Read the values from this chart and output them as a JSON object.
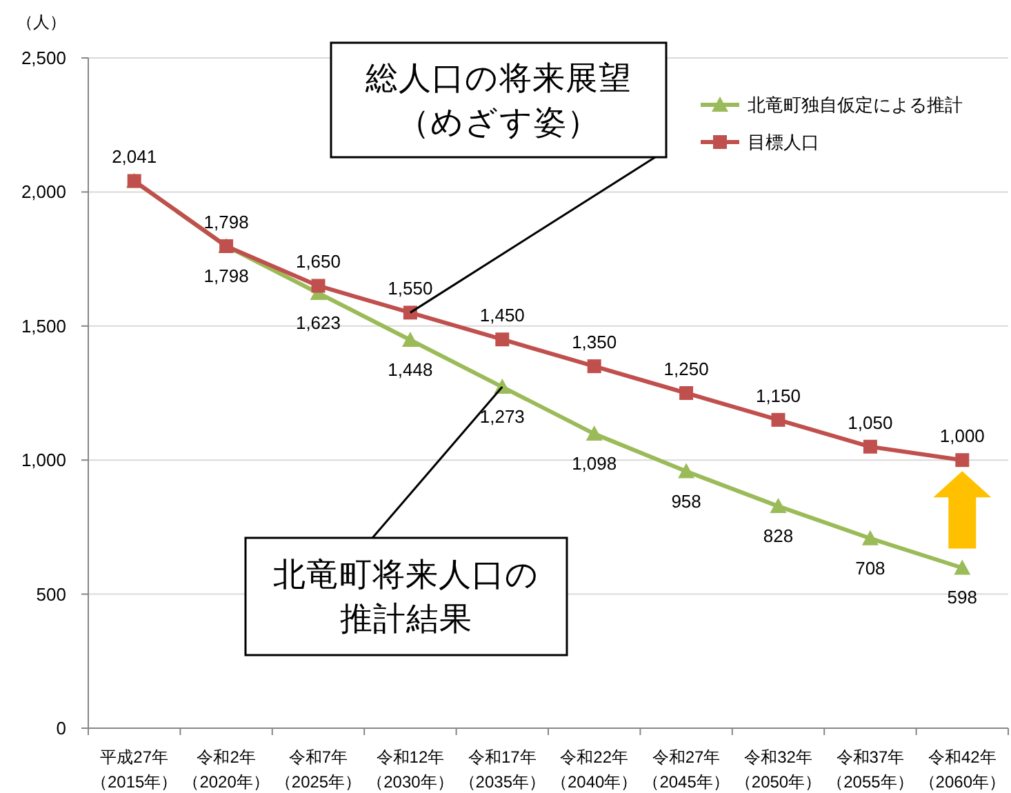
{
  "chart_data": {
    "type": "line",
    "ylabel": "（人）",
    "categories": [
      "平成27年（2015年）",
      "令和2年（2020年）",
      "令和7年（2025年）",
      "令和12年（2030年）",
      "令和17年（2035年）",
      "令和22年（2040年）",
      "令和27年（2045年）",
      "令和32年（2050年）",
      "令和37年（2055年）",
      "令和42年（2060年）"
    ],
    "series": [
      {
        "name": "北竜町独自仮定による推計",
        "color": "#9bbb59",
        "marker": "triangle",
        "values": [
          2041,
          1798,
          1623,
          1448,
          1273,
          1098,
          958,
          828,
          708,
          598
        ],
        "value_labels": [
          null,
          "1,798",
          "1,623",
          "1,448",
          "1,273",
          "1,098",
          "958",
          "828",
          "708",
          "598"
        ]
      },
      {
        "name": "目標人口",
        "color": "#c0504d",
        "marker": "square",
        "values": [
          2041,
          1798,
          1650,
          1550,
          1450,
          1350,
          1250,
          1150,
          1050,
          1000
        ],
        "value_labels": [
          "2,041",
          "1,798",
          "1,650",
          "1,550",
          "1,450",
          "1,350",
          "1,250",
          "1,150",
          "1,050",
          "1,000"
        ]
      }
    ],
    "ylim": [
      0,
      2500
    ],
    "yticks": [
      0,
      500,
      {
        "value": 1000,
        "label": "1,000"
      },
      {
        "value": 1500,
        "label": "1,500"
      },
      {
        "value": 2000,
        "label": "2,000"
      },
      {
        "value": 2500,
        "label": "2,500"
      }
    ],
    "grid": "y",
    "legend": "top right",
    "line_style": "solid",
    "annotations": [
      {
        "text": "総人口の将来展望（めざす姿）",
        "x": "令和12年（2030年）",
        "y": 1550
      },
      {
        "text": "北竜町将来人口の推計結果",
        "x": "令和17年（2035年）",
        "y": 1273
      }
    ]
  }
}
